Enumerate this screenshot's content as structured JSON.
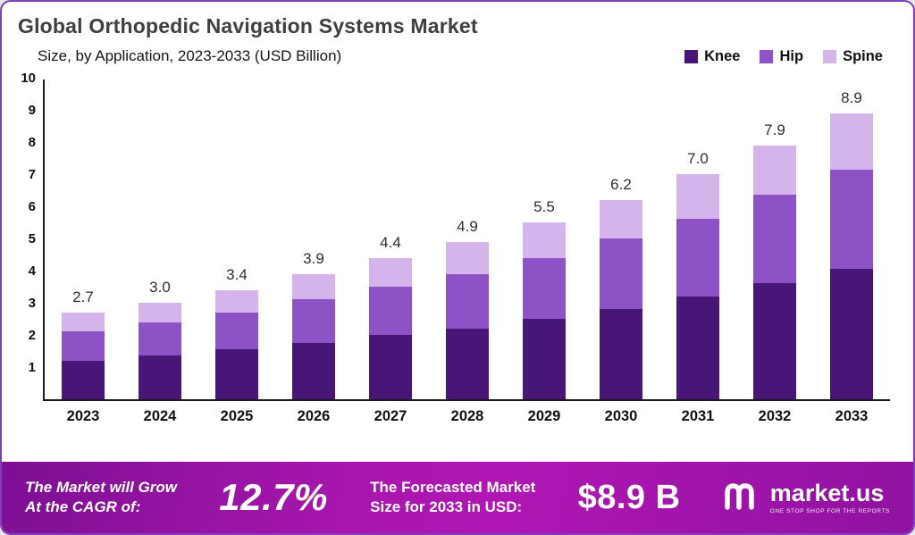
{
  "title": "Global Orthopedic Navigation Systems Market",
  "subtitle": "Size, by Application, 2023-2033 (USD Billion)",
  "legend": [
    {
      "label": "Knee",
      "color": "#471676"
    },
    {
      "label": "Hip",
      "color": "#8c52c6"
    },
    {
      "label": "Spine",
      "color": "#d5b4ec"
    }
  ],
  "colors": {
    "frame_border": "#7e3fbf",
    "axis": "#1a1a1a",
    "banner_gradient_start": "#7d0f93",
    "banner_gradient_mid": "#b016b4",
    "banner_gradient_end": "#8f12a0"
  },
  "chart_data": {
    "type": "bar",
    "stacked": true,
    "title": "Global Orthopedic Navigation Systems Market",
    "subtitle": "Size, by Application, 2023-2033 (USD Billion)",
    "categories": [
      "2023",
      "2024",
      "2025",
      "2026",
      "2027",
      "2028",
      "2029",
      "2030",
      "2031",
      "2032",
      "2033"
    ],
    "series": [
      {
        "name": "Knee",
        "color": "#471676",
        "values": [
          1.2,
          1.35,
          1.55,
          1.75,
          2.0,
          2.2,
          2.5,
          2.8,
          3.2,
          3.6,
          4.05
        ]
      },
      {
        "name": "Hip",
        "color": "#8c52c6",
        "values": [
          0.9,
          1.05,
          1.15,
          1.35,
          1.5,
          1.7,
          1.9,
          2.2,
          2.4,
          2.75,
          3.1
        ]
      },
      {
        "name": "Spine",
        "color": "#d5b4ec",
        "values": [
          0.6,
          0.6,
          0.7,
          0.8,
          0.9,
          1.0,
          1.1,
          1.2,
          1.4,
          1.55,
          1.75
        ]
      }
    ],
    "totals": [
      2.7,
      3.0,
      3.4,
      3.9,
      4.4,
      4.9,
      5.5,
      6.2,
      7.0,
      7.9,
      8.9
    ],
    "total_labels": [
      "2.7",
      "3.0",
      "3.4",
      "3.9",
      "4.4",
      "4.9",
      "5.5",
      "6.2",
      "7.0",
      "7.9",
      "8.9"
    ],
    "ylabel": "",
    "xlabel": "",
    "ylim": [
      0,
      10
    ],
    "yticks": [
      "10",
      "9",
      "8",
      "7",
      "6",
      "5",
      "4",
      "3",
      "2",
      "1"
    ],
    "grid": false,
    "legend_position": "top-right"
  },
  "banner": {
    "cagr_line1": "The Market will Grow",
    "cagr_line2": "At the CAGR of:",
    "cagr_value": "12.7%",
    "forecast_line1": "The Forecasted Market",
    "forecast_line2": "Size for 2033 in USD:",
    "forecast_value": "$8.9 B",
    "brand": "market.us",
    "brand_tagline": "ONE STOP SHOP FOR THE REPORTS"
  }
}
